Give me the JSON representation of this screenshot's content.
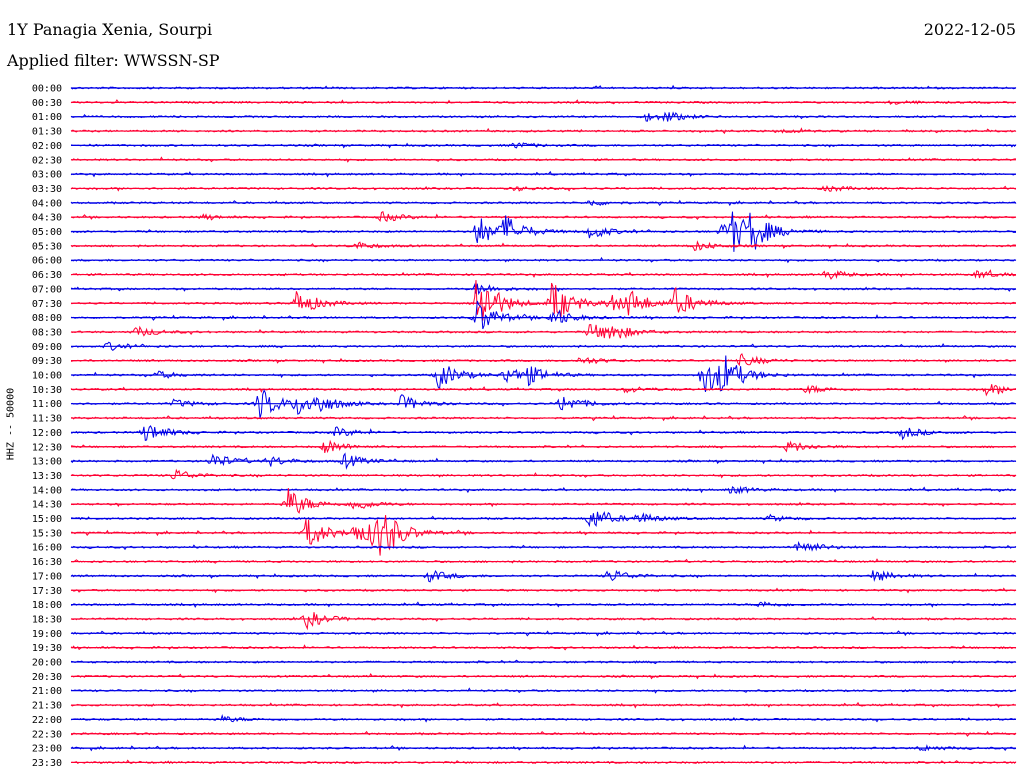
{
  "header": {
    "title": "1Y Panagia Xenia, Sourpi",
    "date": "2022-12-05",
    "filter": "Applied filter: WWSSN-SP"
  },
  "chart_data": {
    "type": "line",
    "channel_label": "HHZ -- 50000",
    "colors": {
      "even": "#0000e6",
      "odd": "#ff0033"
    },
    "tick_labels": [
      "00:00",
      "00:30",
      "01:00",
      "01:30",
      "02:00",
      "02:30",
      "03:00",
      "03:30",
      "04:00",
      "04:30",
      "05:00",
      "05:30",
      "06:00",
      "06:30",
      "07:00",
      "07:30",
      "08:00",
      "08:30",
      "09:00",
      "09:30",
      "10:00",
      "10:30",
      "11:00",
      "11:30",
      "12:00",
      "12:30",
      "13:00",
      "13:30",
      "14:00",
      "14:30",
      "15:00",
      "15:30",
      "16:00",
      "16:30",
      "17:00",
      "17:30",
      "18:00",
      "18:30",
      "19:00",
      "19:30",
      "20:00",
      "20:30",
      "21:00",
      "21:30",
      "22:00",
      "22:30",
      "23:00",
      "23:30"
    ],
    "events": [
      [
        1,
        0.87,
        2
      ],
      [
        2,
        0.61,
        4
      ],
      [
        2,
        0.63,
        4
      ],
      [
        3,
        0.75,
        2
      ],
      [
        4,
        0.47,
        3
      ],
      [
        7,
        0.8,
        3
      ],
      [
        7,
        0.47,
        2
      ],
      [
        8,
        0.55,
        3
      ],
      [
        9,
        0.33,
        5
      ],
      [
        9,
        0.14,
        2
      ],
      [
        10,
        0.43,
        16
      ],
      [
        10,
        0.46,
        14
      ],
      [
        10,
        0.55,
        7
      ],
      [
        10,
        0.69,
        8
      ],
      [
        10,
        0.7,
        17
      ],
      [
        10,
        0.72,
        15
      ],
      [
        11,
        0.3,
        4
      ],
      [
        11,
        0.66,
        5
      ],
      [
        13,
        0.8,
        5
      ],
      [
        13,
        0.96,
        4
      ],
      [
        14,
        0.43,
        6
      ],
      [
        15,
        0.24,
        14
      ],
      [
        15,
        0.43,
        34
      ],
      [
        15,
        0.51,
        22
      ],
      [
        15,
        0.59,
        12
      ],
      [
        15,
        0.64,
        14
      ],
      [
        15,
        0.57,
        8
      ],
      [
        16,
        0.43,
        18
      ],
      [
        16,
        0.51,
        9
      ],
      [
        17,
        0.07,
        5
      ],
      [
        17,
        0.55,
        9
      ],
      [
        17,
        0.57,
        8
      ],
      [
        18,
        0.04,
        4
      ],
      [
        19,
        0.54,
        4
      ],
      [
        19,
        0.71,
        6
      ],
      [
        20,
        0.39,
        14
      ],
      [
        20,
        0.46,
        8
      ],
      [
        20,
        0.48,
        10
      ],
      [
        20,
        0.67,
        20
      ],
      [
        20,
        0.69,
        16
      ],
      [
        20,
        0.09,
        4
      ],
      [
        21,
        0.97,
        6
      ],
      [
        21,
        0.78,
        4
      ],
      [
        21,
        0.59,
        3
      ],
      [
        22,
        0.2,
        16
      ],
      [
        22,
        0.24,
        10
      ],
      [
        22,
        0.26,
        8
      ],
      [
        22,
        0.35,
        8
      ],
      [
        22,
        0.52,
        9
      ],
      [
        22,
        0.11,
        4
      ],
      [
        24,
        0.08,
        10
      ],
      [
        24,
        0.88,
        6
      ],
      [
        24,
        0.28,
        5
      ],
      [
        25,
        0.27,
        7
      ],
      [
        25,
        0.76,
        6
      ],
      [
        26,
        0.15,
        8
      ],
      [
        26,
        0.21,
        5
      ],
      [
        26,
        0.29,
        7
      ],
      [
        27,
        0.11,
        6
      ],
      [
        28,
        0.7,
        4
      ],
      [
        29,
        0.23,
        16
      ],
      [
        29,
        0.3,
        6
      ],
      [
        30,
        0.55,
        12
      ],
      [
        30,
        0.6,
        5
      ],
      [
        30,
        0.74,
        3
      ],
      [
        31,
        0.25,
        16
      ],
      [
        31,
        0.3,
        10
      ],
      [
        31,
        0.32,
        14
      ],
      [
        31,
        0.33,
        18
      ],
      [
        32,
        0.77,
        8
      ],
      [
        34,
        0.38,
        6
      ],
      [
        34,
        0.57,
        7
      ],
      [
        34,
        0.85,
        6
      ],
      [
        36,
        0.73,
        3
      ],
      [
        37,
        0.25,
        9
      ],
      [
        44,
        0.16,
        3
      ],
      [
        46,
        0.9,
        3
      ]
    ]
  }
}
